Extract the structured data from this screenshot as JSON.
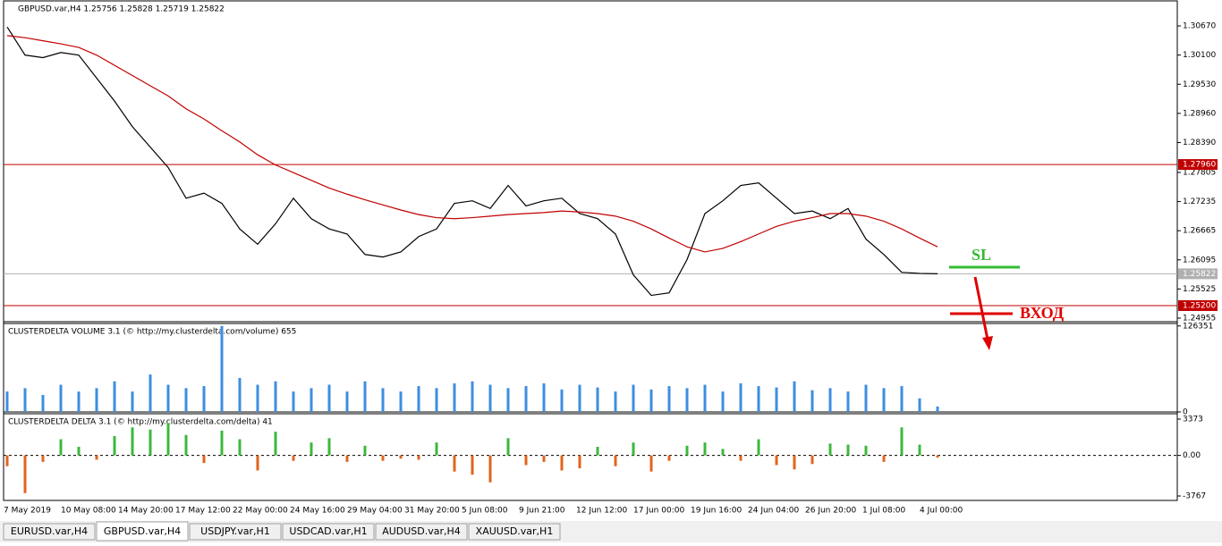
{
  "window": {
    "tabs": [
      "EURUSD.var,H4",
      "GBPUSD.var,H4",
      "USDJPY.var,H1",
      "USDCAD.var,H1",
      "AUDUSD.var,H4",
      "XAUUSD.var,H1"
    ]
  },
  "chart_data": [
    {
      "type": "line",
      "title": "GBPUSD.var,H4  1.25756 1.25828 1.25719 1.25822",
      "ylim": [
        1.24885,
        1.3116
      ],
      "yticks": [
        {
          "value": 1.3067,
          "label": "1.30670"
        },
        {
          "value": 1.301,
          "label": "1.30100"
        },
        {
          "value": 1.2953,
          "label": "1.29530"
        },
        {
          "value": 1.2896,
          "label": "1.28960"
        },
        {
          "value": 1.2839,
          "label": "1.28390"
        },
        {
          "value": 1.27805,
          "label": "1.27805"
        },
        {
          "value": 1.27235,
          "label": "1.27235"
        },
        {
          "value": 1.26665,
          "label": "1.26665"
        },
        {
          "value": 1.26095,
          "label": "1.26095"
        },
        {
          "value": 1.25525,
          "label": "1.25525"
        },
        {
          "value": 1.24955,
          "label": "1.24955"
        }
      ],
      "levels": [
        {
          "value": 1.2796,
          "label": "1.27960",
          "color": "#c00000"
        },
        {
          "value": 1.252,
          "label": "1.25200",
          "color": "#c00000"
        },
        {
          "value": 1.25822,
          "label": "1.25822",
          "color": "#b0b0b0"
        }
      ],
      "series": [
        {
          "color": "#000000",
          "values": [
            1.3065,
            1.301,
            1.3005,
            1.3015,
            1.301,
            1.2965,
            1.292,
            1.287,
            1.283,
            1.279,
            1.273,
            1.274,
            1.272,
            1.267,
            1.264,
            1.268,
            1.273,
            1.269,
            1.267,
            1.266,
            1.262,
            1.2615,
            1.2625,
            1.2655,
            1.267,
            1.272,
            1.2725,
            1.271,
            1.2755,
            1.2715,
            1.2725,
            1.273,
            1.27,
            1.269,
            1.266,
            1.258,
            1.254,
            1.2545,
            1.261,
            1.27,
            1.2725,
            1.2755,
            1.276,
            1.273,
            1.27,
            1.2705,
            1.269,
            1.271,
            1.265,
            1.262,
            1.2585,
            1.2583,
            1.25822
          ]
        },
        {
          "color": "#c00000",
          "values": [
            1.3048,
            1.3044,
            1.3038,
            1.3032,
            1.3025,
            1.301,
            1.299,
            1.297,
            1.295,
            1.293,
            1.2905,
            1.2885,
            1.2862,
            1.284,
            1.2815,
            1.2795,
            1.278,
            1.2765,
            1.275,
            1.2738,
            1.2727,
            1.2717,
            1.2707,
            1.2698,
            1.2692,
            1.269,
            1.2692,
            1.2695,
            1.2698,
            1.27,
            1.2702,
            1.2705,
            1.2703,
            1.27,
            1.2695,
            1.2685,
            1.267,
            1.2652,
            1.2635,
            1.2625,
            1.2632,
            1.2645,
            1.266,
            1.2675,
            1.2685,
            1.2692,
            1.27,
            1.27,
            1.2695,
            1.2685,
            1.267,
            1.2652,
            1.2635
          ]
        }
      ],
      "annotations": [
        {
          "text": "SL",
          "color": "#33bb33"
        },
        {
          "text": "ВХОД",
          "color": "#e00000"
        }
      ],
      "x_labels": [
        "7 May 2019",
        "10 May 08:00",
        "14 May 20:00",
        "17 May 12:00",
        "22 May 00:00",
        "24 May 16:00",
        "29 May 04:00",
        "31 May 20:00",
        "5 Jun 08:00",
        "9 Jun 21:00",
        "12 Jun 12:00",
        "17 Jun 00:00",
        "19 Jun 16:00",
        "24 Jun 04:00",
        "26 Jun 20:00",
        "1 Jul 08:00",
        "4 Jul 00:00"
      ]
    },
    {
      "type": "bar",
      "title": "CLUSTERDELTA VOLUME 3.1 (© http://my.clusterdelta.com/volume) 655",
      "color": "#3c8ee0",
      "ylim": [
        0,
        130000
      ],
      "yticks": [
        126351,
        0
      ],
      "values": [
        30000,
        35000,
        25000,
        40000,
        30000,
        35000,
        45000,
        30000,
        55000,
        40000,
        35000,
        38000,
        126351,
        50000,
        40000,
        45000,
        30000,
        35000,
        40000,
        30000,
        45000,
        35000,
        30000,
        38000,
        35000,
        42000,
        45000,
        40000,
        35000,
        38000,
        42000,
        33000,
        40000,
        36000,
        30000,
        40000,
        33000,
        38000,
        35000,
        40000,
        30000,
        42000,
        38000,
        36000,
        45000,
        32000,
        35000,
        30000,
        40000,
        35000,
        38000,
        20000,
        8000
      ]
    },
    {
      "type": "bar",
      "title": "CLUSTERDELTA DELTA 3.1 (© http://my.clusterdelta.com/delta) 41",
      "colors": [
        "#3cb83c",
        "#e0641e"
      ],
      "ylim": [
        -4180,
        3869
      ],
      "yticks": [
        3373,
        {
          "value": 0,
          "label": "0.00"
        },
        -3767
      ],
      "values": [
        -1000,
        -3500,
        -600,
        1500,
        800,
        -400,
        1800,
        2600,
        2400,
        3000,
        1900,
        -700,
        2300,
        1500,
        -1400,
        2200,
        -500,
        1200,
        1600,
        -600,
        900,
        -500,
        -300,
        -400,
        1200,
        -1500,
        -1800,
        -2500,
        1600,
        -900,
        -600,
        -1400,
        -1200,
        800,
        -1000,
        1200,
        -1500,
        -500,
        900,
        1200,
        600,
        -500,
        1500,
        -900,
        -1300,
        -800,
        1100,
        1000,
        900,
        -600,
        2600,
        1000,
        -200
      ]
    }
  ]
}
